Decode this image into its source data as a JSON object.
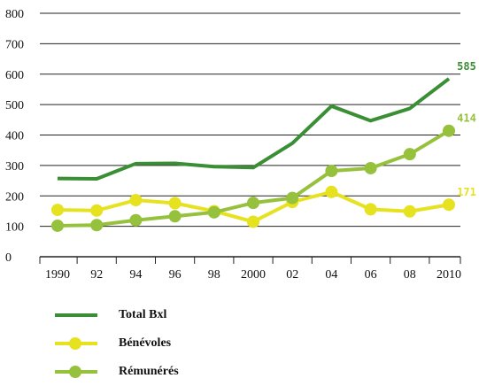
{
  "chart_data": {
    "type": "line",
    "categories": [
      "1990",
      "92",
      "94",
      "96",
      "98",
      "2000",
      "02",
      "04",
      "06",
      "08",
      "2010"
    ],
    "ylim": [
      0,
      800
    ],
    "yticks": [
      0,
      100,
      200,
      300,
      400,
      500,
      600,
      700,
      800
    ],
    "grid": "horizontal",
    "legend_position": "bottom-left",
    "series": [
      {
        "name": "Total Bxl",
        "color": "#3a8f35",
        "markers": false,
        "values": [
          257,
          256,
          306,
          307,
          296,
          293,
          373,
          495,
          447,
          487,
          585
        ],
        "end_label": "585"
      },
      {
        "name": "Bénévoles",
        "color": "#e6e21f",
        "markers": true,
        "values": [
          154,
          152,
          186,
          176,
          150,
          115,
          180,
          213,
          156,
          149,
          171
        ],
        "end_label": "171"
      },
      {
        "name": "Rémunérés",
        "color": "#95c13c",
        "markers": true,
        "values": [
          102,
          104,
          120,
          133,
          146,
          177,
          193,
          282,
          291,
          337,
          414
        ],
        "end_label": "414"
      }
    ]
  }
}
